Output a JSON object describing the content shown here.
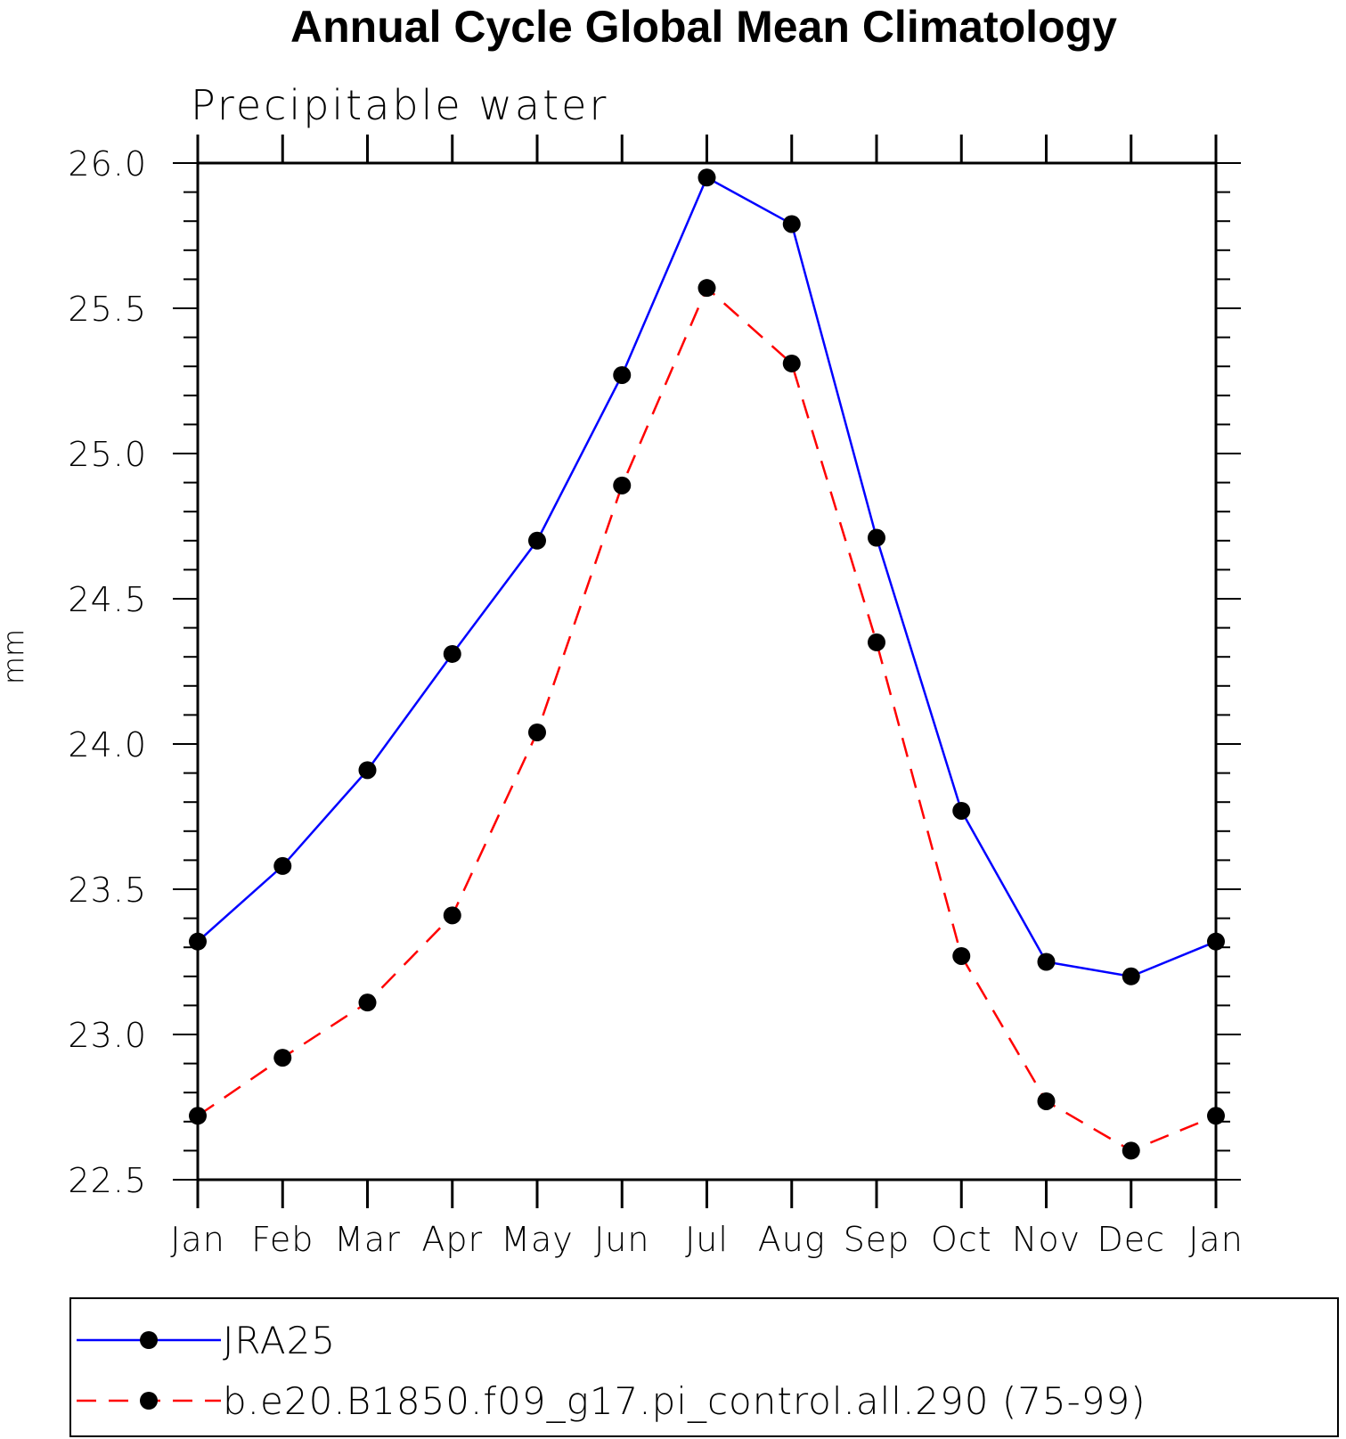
{
  "chart_data": {
    "type": "line",
    "title": "Annual Cycle Global Mean Climatology",
    "subtitle": "Precipitable water",
    "ylabel": "mm",
    "xlabel": "",
    "categories": [
      "Jan",
      "Feb",
      "Mar",
      "Apr",
      "May",
      "Jun",
      "Jul",
      "Aug",
      "Sep",
      "Oct",
      "Nov",
      "Dec",
      "Jan"
    ],
    "ylim": [
      22.5,
      26.0
    ],
    "yticks": [
      "22.5",
      "23.0",
      "23.5",
      "24.0",
      "24.5",
      "25.0",
      "25.5",
      "26.0"
    ],
    "grid": false,
    "legend_position": "bottom",
    "series": [
      {
        "name": "JRA25",
        "color": "#0000ff",
        "line_style": "solid",
        "values": [
          23.32,
          23.58,
          23.91,
          24.31,
          24.7,
          25.27,
          25.95,
          25.79,
          24.71,
          23.77,
          23.25,
          23.2,
          23.32
        ]
      },
      {
        "name": "b.e20.B1850.f09_g17.pi_control.all.290 (75-99)",
        "color": "#ff0000",
        "line_style": "dashed",
        "values": [
          22.72,
          22.92,
          23.11,
          23.41,
          24.04,
          24.89,
          25.57,
          25.31,
          24.35,
          23.27,
          22.77,
          22.6,
          22.72
        ]
      }
    ]
  }
}
